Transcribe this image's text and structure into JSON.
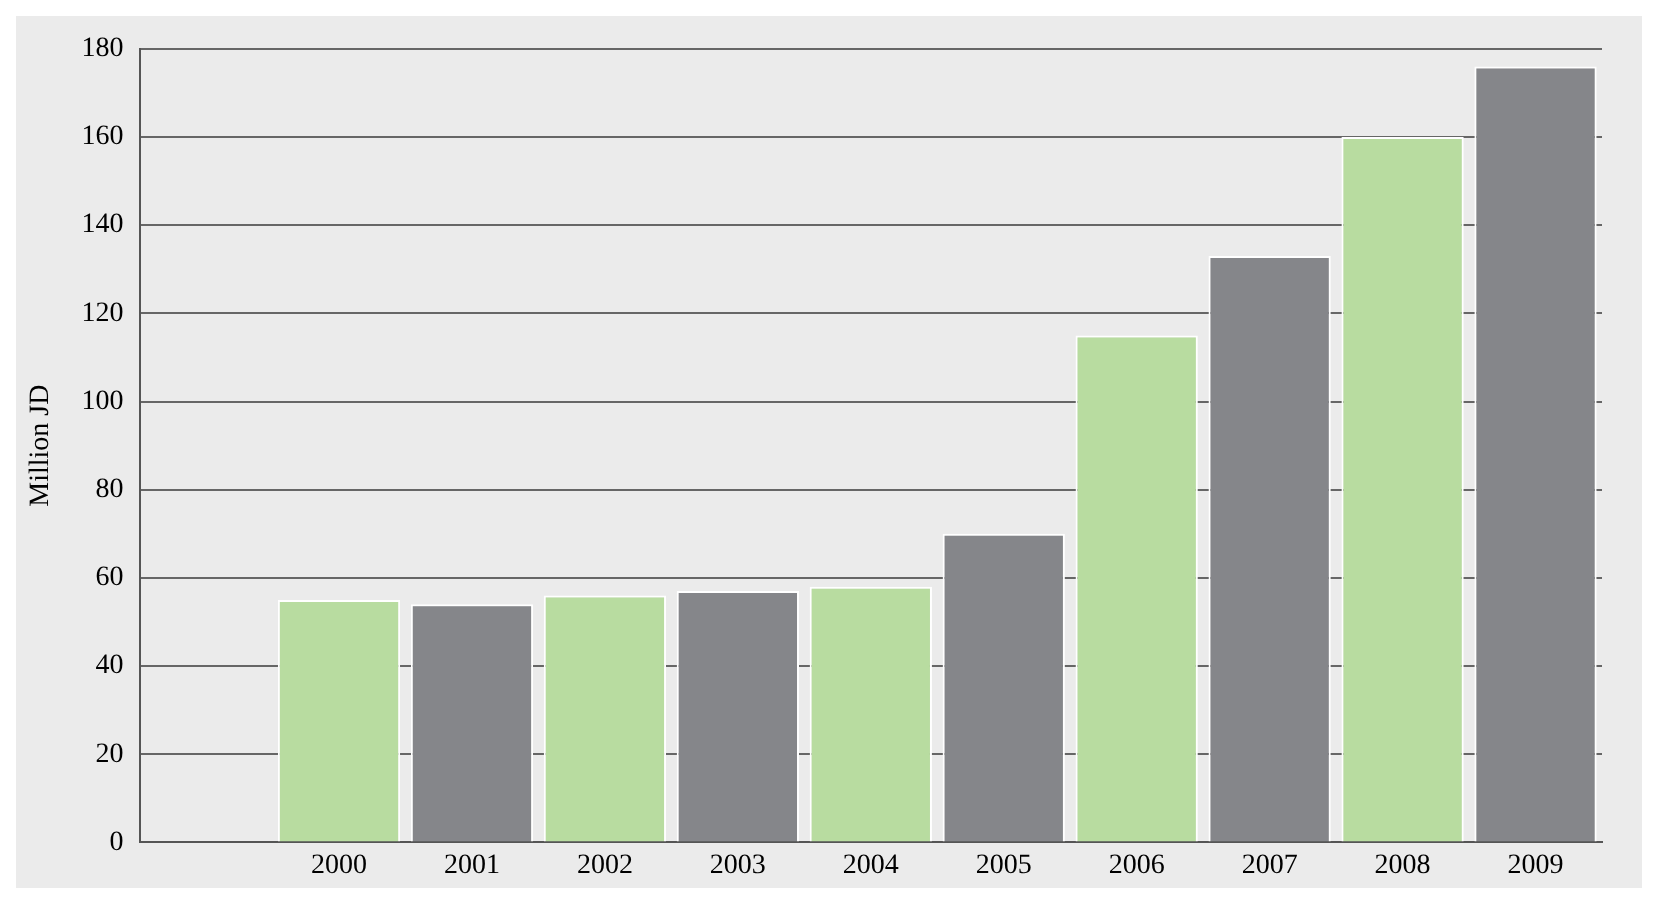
{
  "chart_data": {
    "type": "bar",
    "ylabel": "Million JD",
    "categories": [
      null,
      "2000",
      "2001",
      "2002",
      "2003",
      "2004",
      "2005",
      "2006",
      "2007",
      "2008",
      "2009"
    ],
    "values": [
      null,
      55,
      54,
      56,
      57,
      58,
      70,
      115,
      133,
      160,
      176
    ],
    "colors": [
      "#b8dca0",
      "#b8dca0",
      "#85868a",
      "#b8dca0",
      "#85868a",
      "#b8dca0",
      "#85868a",
      "#b8dca0",
      "#85868a",
      "#b8dca0",
      "#85868a"
    ],
    "ylim": [
      0,
      180
    ],
    "yticks": [
      0,
      20,
      40,
      60,
      80,
      100,
      120,
      140,
      160,
      180
    ],
    "grid": "y"
  }
}
